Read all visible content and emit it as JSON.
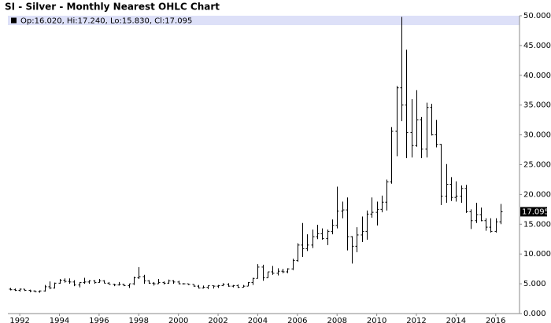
{
  "chart_data": {
    "type": "ohlc",
    "title": "SI - Silver - Monthly Nearest OHLC Chart",
    "header_text": "Op:16.020, Hi:17.240, Lo:15.830, Cl:17.095",
    "last_label": {
      "value": 17.095,
      "label": "17.095"
    },
    "color": "#000000",
    "xlim": [
      1991.4,
      2017.2
    ],
    "xticks": [
      1992,
      1994,
      1996,
      1998,
      2000,
      2002,
      2004,
      2006,
      2008,
      2010,
      2012,
      2014,
      2016
    ],
    "ylim": [
      0,
      50
    ],
    "yticks": [
      {
        "value": 0,
        "label": "0.000"
      },
      {
        "value": 5,
        "label": "5.000"
      },
      {
        "value": 10,
        "label": "10.000"
      },
      {
        "value": 15,
        "label": "15.000"
      },
      {
        "value": 20,
        "label": "20.000"
      },
      {
        "value": 25,
        "label": "25.000"
      },
      {
        "value": 30,
        "label": "30.000"
      },
      {
        "value": 35,
        "label": "35.000"
      },
      {
        "value": 40,
        "label": "40.000"
      },
      {
        "value": 45,
        "label": "45.000"
      },
      {
        "value": 50,
        "label": "50.000"
      }
    ],
    "x": [
      1991.5,
      1991.75,
      1992,
      1992.25,
      1992.5,
      1992.75,
      1993,
      1993.25,
      1993.5,
      1993.75,
      1994,
      1994.25,
      1994.5,
      1994.75,
      1995,
      1995.25,
      1995.5,
      1995.75,
      1996,
      1996.25,
      1996.5,
      1996.75,
      1997,
      1997.25,
      1997.5,
      1997.75,
      1998,
      1998.25,
      1998.5,
      1998.75,
      1999,
      1999.25,
      1999.5,
      1999.75,
      2000,
      2000.25,
      2000.5,
      2000.75,
      2001,
      2001.25,
      2001.5,
      2001.75,
      2002,
      2002.25,
      2002.5,
      2002.75,
      2003,
      2003.25,
      2003.5,
      2003.75,
      2004,
      2004.25,
      2004.5,
      2004.75,
      2005,
      2005.25,
      2005.5,
      2005.75,
      2006,
      2006.25,
      2006.5,
      2006.75,
      2007,
      2007.25,
      2007.5,
      2007.75,
      2008,
      2008.25,
      2008.5,
      2008.75,
      2009,
      2009.25,
      2009.5,
      2009.75,
      2010,
      2010.25,
      2010.5,
      2010.75,
      2011,
      2011.25,
      2011.5,
      2011.75,
      2012,
      2012.25,
      2012.5,
      2012.75,
      2013,
      2013.25,
      2013.5,
      2013.75,
      2014,
      2014.25,
      2014.5,
      2014.75,
      2015,
      2015.25,
      2015.5,
      2015.75,
      2016,
      2016.25
    ],
    "values": [
      [
        4.1,
        4.3,
        3.9,
        4.0
      ],
      [
        4.0,
        4.2,
        3.8,
        3.9
      ],
      [
        3.9,
        4.2,
        3.7,
        4.1
      ],
      [
        4.1,
        4.1,
        3.8,
        3.9
      ],
      [
        3.9,
        4.0,
        3.6,
        3.8
      ],
      [
        3.8,
        3.9,
        3.6,
        3.7
      ],
      [
        3.7,
        3.9,
        3.5,
        3.8
      ],
      [
        3.8,
        4.8,
        3.7,
        4.5
      ],
      [
        4.5,
        5.4,
        4.1,
        4.3
      ],
      [
        4.3,
        5.2,
        4.2,
        5.1
      ],
      [
        5.1,
        5.8,
        5.0,
        5.6
      ],
      [
        5.6,
        5.9,
        5.2,
        5.4
      ],
      [
        5.4,
        5.9,
        5.0,
        5.3
      ],
      [
        5.3,
        5.6,
        4.6,
        4.8
      ],
      [
        4.8,
        5.3,
        4.4,
        5.2
      ],
      [
        5.2,
        6.0,
        5.0,
        5.3
      ],
      [
        5.3,
        5.6,
        5.0,
        5.5
      ],
      [
        5.5,
        5.6,
        5.0,
        5.2
      ],
      [
        5.2,
        5.8,
        5.2,
        5.5
      ],
      [
        5.5,
        5.6,
        5.1,
        5.1
      ],
      [
        5.1,
        5.3,
        4.9,
        4.9
      ],
      [
        4.9,
        5.0,
        4.6,
        4.8
      ],
      [
        4.8,
        5.3,
        4.7,
        4.9
      ],
      [
        4.9,
        5.0,
        4.6,
        4.7
      ],
      [
        4.7,
        5.0,
        4.3,
        5.0
      ],
      [
        5.0,
        6.2,
        4.8,
        6.0
      ],
      [
        6.0,
        7.8,
        5.8,
        6.2
      ],
      [
        6.2,
        6.5,
        5.0,
        5.5
      ],
      [
        5.5,
        5.6,
        5.0,
        5.1
      ],
      [
        5.1,
        5.3,
        4.7,
        5.0
      ],
      [
        5.0,
        5.8,
        5.0,
        5.2
      ],
      [
        5.2,
        5.4,
        4.9,
        5.1
      ],
      [
        5.1,
        5.7,
        5.0,
        5.5
      ],
      [
        5.5,
        5.6,
        5.0,
        5.3
      ],
      [
        5.3,
        5.5,
        4.9,
        5.0
      ],
      [
        5.0,
        5.1,
        4.9,
        5.0
      ],
      [
        5.0,
        5.0,
        4.8,
        4.9
      ],
      [
        4.9,
        4.9,
        4.5,
        4.6
      ],
      [
        4.6,
        4.8,
        4.2,
        4.3
      ],
      [
        4.3,
        4.7,
        4.2,
        4.4
      ],
      [
        4.4,
        4.7,
        4.1,
        4.7
      ],
      [
        4.7,
        4.7,
        4.2,
        4.6
      ],
      [
        4.6,
        4.8,
        4.3,
        4.7
      ],
      [
        4.7,
        5.1,
        4.6,
        4.9
      ],
      [
        4.9,
        5.1,
        4.5,
        4.6
      ],
      [
        4.6,
        4.8,
        4.4,
        4.7
      ],
      [
        4.7,
        4.9,
        4.3,
        4.4
      ],
      [
        4.4,
        4.8,
        4.4,
        4.6
      ],
      [
        4.6,
        5.3,
        4.6,
        5.2
      ],
      [
        5.2,
        6.0,
        4.8,
        5.9
      ],
      [
        5.9,
        8.3,
        5.9,
        7.8
      ],
      [
        7.8,
        8.2,
        5.5,
        6.0
      ],
      [
        6.0,
        7.0,
        6.0,
        7.0
      ],
      [
        7.0,
        8.0,
        6.5,
        6.8
      ],
      [
        6.8,
        7.6,
        6.4,
        7.1
      ],
      [
        7.1,
        7.5,
        6.8,
        7.0
      ],
      [
        7.0,
        7.6,
        6.8,
        7.5
      ],
      [
        7.5,
        9.2,
        7.3,
        8.9
      ],
      [
        8.9,
        11.8,
        8.7,
        11.5
      ],
      [
        11.5,
        15.2,
        9.5,
        10.9
      ],
      [
        10.9,
        13.3,
        10.5,
        11.5
      ],
      [
        11.5,
        14.1,
        11.0,
        12.9
      ],
      [
        12.9,
        14.9,
        12.5,
        13.4
      ],
      [
        13.4,
        14.3,
        12.4,
        12.6
      ],
      [
        12.6,
        14.1,
        11.5,
        13.8
      ],
      [
        13.8,
        15.8,
        13.3,
        14.8
      ],
      [
        14.8,
        21.3,
        14.3,
        17.2
      ],
      [
        17.2,
        18.8,
        16.0,
        17.4
      ],
      [
        17.4,
        19.5,
        10.6,
        12.9
      ],
      [
        12.9,
        13.0,
        8.4,
        11.3
      ],
      [
        11.3,
        14.5,
        10.3,
        13.2
      ],
      [
        13.2,
        16.3,
        12.0,
        13.8
      ],
      [
        13.8,
        17.3,
        12.4,
        16.7
      ],
      [
        16.7,
        19.5,
        16.1,
        17.0
      ],
      [
        17.0,
        18.8,
        14.8,
        17.5
      ],
      [
        17.5,
        19.8,
        17.0,
        18.7
      ],
      [
        18.7,
        22.5,
        17.3,
        22.1
      ],
      [
        22.1,
        31.3,
        21.8,
        30.6
      ],
      [
        30.6,
        38.2,
        26.4,
        37.9
      ],
      [
        37.9,
        49.8,
        32.3,
        35.0
      ],
      [
        35.0,
        44.3,
        26.1,
        30.4
      ],
      [
        30.4,
        36.0,
        26.2,
        28.2
      ],
      [
        28.2,
        37.5,
        28.0,
        32.5
      ],
      [
        32.5,
        33.0,
        26.1,
        27.6
      ],
      [
        27.6,
        35.4,
        26.2,
        34.6
      ],
      [
        34.6,
        35.2,
        29.9,
        30.0
      ],
      [
        30.0,
        32.5,
        27.9,
        28.4
      ],
      [
        28.4,
        28.5,
        18.2,
        19.7
      ],
      [
        19.7,
        25.1,
        18.6,
        21.7
      ],
      [
        21.7,
        22.9,
        18.9,
        19.5
      ],
      [
        19.5,
        22.2,
        18.8,
        19.7
      ],
      [
        19.7,
        21.5,
        18.6,
        21.0
      ],
      [
        21.0,
        21.6,
        16.9,
        17.1
      ],
      [
        17.1,
        17.5,
        14.2,
        15.6
      ],
      [
        15.6,
        18.6,
        15.2,
        16.6
      ],
      [
        16.6,
        17.8,
        15.5,
        15.6
      ],
      [
        15.6,
        16.0,
        13.9,
        14.5
      ],
      [
        14.5,
        16.0,
        13.6,
        13.8
      ],
      [
        13.8,
        16.0,
        13.6,
        15.4
      ],
      [
        15.4,
        18.4,
        15.0,
        17.095
      ]
    ]
  }
}
